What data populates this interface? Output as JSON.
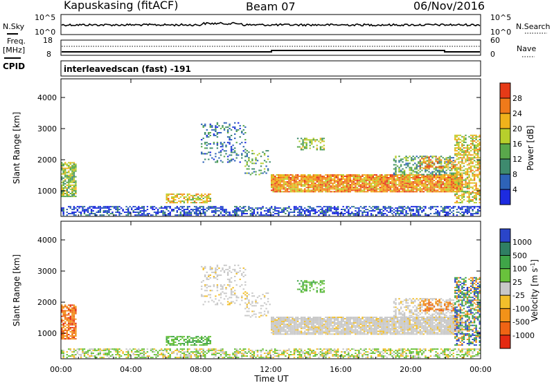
{
  "header": {
    "title": "Kapuskasing (fitACF)",
    "beam": "Beam 07",
    "date": "06/Nov/2016"
  },
  "top_panel": {
    "nsky_label": "N.Sky",
    "nsearch_label": "N.Search",
    "left_top_tick": "10^5",
    "left_bottom_tick": "10^0",
    "right_top_tick": "10^5",
    "right_bottom_tick": "10^0"
  },
  "freq_panel": {
    "freq_label_line1": "Freq.",
    "freq_label_line2": "[MHz]",
    "cpid_label": "CPID",
    "nave_label": "Nave",
    "left_top_tick": "18",
    "left_bottom_tick": "8",
    "right_top_tick": "60",
    "right_bottom_tick": "0"
  },
  "scan_label": "interleavedscan (fast) -191",
  "colors": {
    "axis": "#000000",
    "ground_scatter": "#c8c8c8"
  },
  "chart_data": [
    {
      "type": "heatmap",
      "title": "Power",
      "ylabel": "Slant Range [km]",
      "xlabel": "",
      "y_ticks": [
        "1000",
        "2000",
        "3000",
        "4000"
      ],
      "ylim": [
        180,
        4600
      ],
      "xlim_hours": [
        0,
        24
      ],
      "colorbar": {
        "label": "Power [dB]",
        "ticks": [
          "4",
          "8",
          "12",
          "16",
          "20",
          "24",
          "28"
        ],
        "colors": [
          "#1d2be0",
          "#2e63b8",
          "#3e8a6e",
          "#59a84b",
          "#b7cf2c",
          "#f0b21b",
          "#f07a1a",
          "#e63a17"
        ]
      }
    },
    {
      "type": "heatmap",
      "title": "Velocity",
      "ylabel": "Slant Range [km]",
      "xlabel": "Time UT",
      "x_ticks": [
        "00:00",
        "04:00",
        "08:00",
        "12:00",
        "16:00",
        "20:00",
        "00:00"
      ],
      "y_ticks": [
        "1000",
        "2000",
        "3000",
        "4000"
      ],
      "ylim": [
        180,
        4600
      ],
      "xlim_hours": [
        0,
        24
      ],
      "colorbar": {
        "label": "Velocity [m s^-1]",
        "ticks": [
          "1000",
          "500",
          "100",
          "25",
          "-25",
          "-100",
          "-500",
          "-1000"
        ],
        "colors": [
          "#2a45c9",
          "#2f7f63",
          "#3fa548",
          "#69c23c",
          "#c8c8c8",
          "#f2bf2b",
          "#f29219",
          "#ef6414",
          "#e42a12"
        ]
      }
    }
  ]
}
